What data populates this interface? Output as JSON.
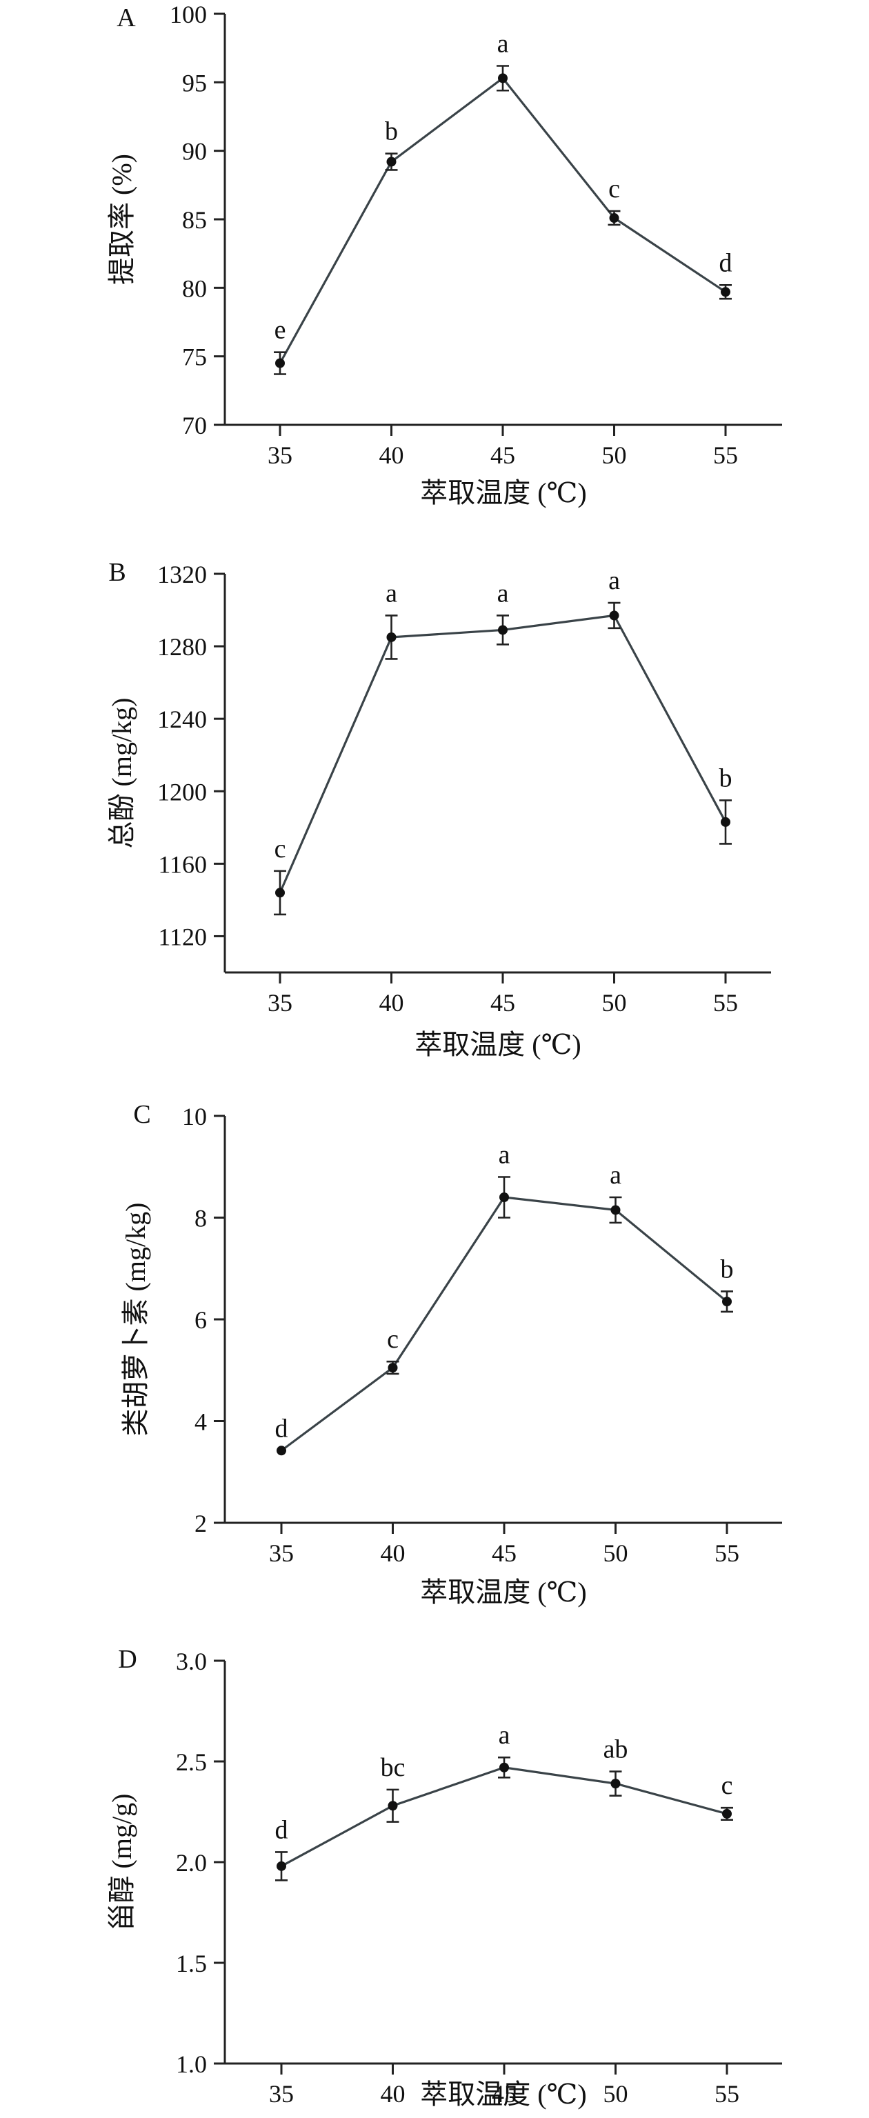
{
  "chart_data": [
    {
      "type": "line",
      "panel_label": "A",
      "xlabel": "萃取温度 (℃)",
      "ylabel": "提取率 (%)",
      "x": [
        35,
        40,
        45,
        50,
        55
      ],
      "ylim": [
        70,
        100
      ],
      "yticks": [
        70,
        75,
        80,
        85,
        90,
        95,
        100
      ],
      "series": [
        {
          "values": [
            74.5,
            89.2,
            95.3,
            85.1,
            79.7
          ],
          "errors": [
            0.8,
            0.6,
            0.9,
            0.5,
            0.5
          ],
          "labels": [
            "e",
            "b",
            "a",
            "c",
            "d"
          ]
        }
      ]
    },
    {
      "type": "line",
      "panel_label": "B",
      "xlabel": "萃取温度 (℃)",
      "ylabel": "总酚 (mg/kg)",
      "x": [
        35,
        40,
        45,
        50,
        55
      ],
      "ylim": [
        1100,
        1320
      ],
      "yticks": [
        1120,
        1160,
        1200,
        1240,
        1280,
        1320
      ],
      "series": [
        {
          "values": [
            1144,
            1285,
            1289,
            1297,
            1183
          ],
          "errors": [
            12,
            12,
            8,
            7,
            12
          ],
          "labels": [
            "c",
            "a",
            "a",
            "a",
            "b"
          ]
        }
      ]
    },
    {
      "type": "line",
      "panel_label": "C",
      "xlabel": "萃取温度 (℃)",
      "ylabel": "类胡萝卜素 (mg/kg)",
      "x": [
        35,
        40,
        45,
        50,
        55
      ],
      "ylim": [
        2,
        10
      ],
      "yticks": [
        2,
        4,
        6,
        8,
        10
      ],
      "series": [
        {
          "values": [
            3.42,
            5.05,
            8.4,
            8.15,
            6.35
          ],
          "errors": [
            0.0,
            0.12,
            0.4,
            0.25,
            0.2
          ],
          "labels": [
            "d",
            "c",
            "a",
            "a",
            "b"
          ]
        }
      ]
    },
    {
      "type": "line",
      "panel_label": "D",
      "xlabel": "萃取温度 (℃)",
      "ylabel": "甾醇 (mg/g)",
      "x": [
        35,
        40,
        45,
        50,
        55
      ],
      "ylim": [
        1.0,
        3.0
      ],
      "yticks": [
        1.0,
        1.5,
        2.0,
        2.5,
        3.0
      ],
      "ytick_labels": [
        "1.0",
        "1.5",
        "2.0",
        "2.5",
        "3.0"
      ],
      "series": [
        {
          "values": [
            1.98,
            2.28,
            2.47,
            2.39,
            2.24
          ],
          "errors": [
            0.07,
            0.08,
            0.05,
            0.06,
            0.03
          ],
          "labels": [
            "d",
            "bc",
            "a",
            "ab",
            "c"
          ]
        }
      ]
    }
  ]
}
